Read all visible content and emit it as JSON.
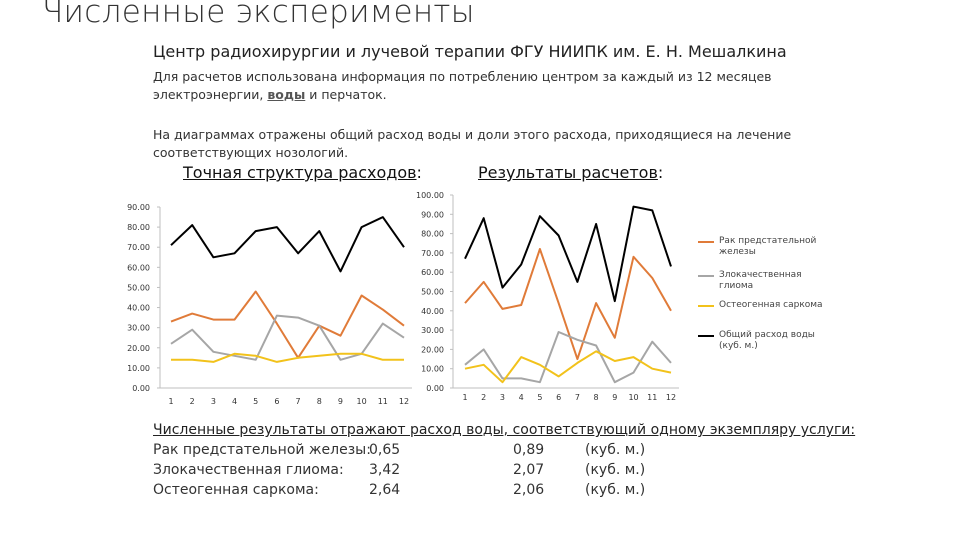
{
  "header": {
    "title": "Численные эксперименты",
    "subtitle": "Центр радиохирургии и лучевой терапии ФГУ НИИПК им. Е. Н. Мешалкина"
  },
  "paragraphs": {
    "p1_before": "Для расчетов использована информация по потреблению центром за каждый из 12 месяцев электроэнергии, ",
    "p1_highlight": "воды",
    "p1_after": " и перчаток.",
    "p2": "На диаграммах отражены общий расход воды и доли этого расхода, приходящиеся на лечение соответствующих нозологий."
  },
  "headings": {
    "left_main": "Точная структура расходов",
    "left_colon": ":",
    "right_main": "Результаты расчетов",
    "right_colon": ":"
  },
  "colors": {
    "prostate": "#e07b39",
    "glioma": "#a6a6a6",
    "sarcoma": "#f2c21b",
    "total": "#000000"
  },
  "chart_data": [
    {
      "type": "line",
      "title": "Точная структура расходов",
      "x": [
        1,
        2,
        3,
        4,
        5,
        6,
        7,
        8,
        9,
        10,
        11,
        12
      ],
      "ylim": [
        0,
        90
      ],
      "yticks": [
        "0.00",
        "10.00",
        "20.00",
        "30.00",
        "40.00",
        "50.00",
        "60.00",
        "70.00",
        "80.00",
        "90.00"
      ],
      "grid": false,
      "series": [
        {
          "name": "Рак предстательной железы",
          "color": "#e07b39",
          "values": [
            33,
            37,
            34,
            34,
            48,
            32,
            15,
            31,
            26,
            46,
            39,
            31
          ]
        },
        {
          "name": "Злокачественная глиома",
          "color": "#a6a6a6",
          "values": [
            22,
            29,
            18,
            16,
            14,
            36,
            35,
            31,
            14,
            17,
            32,
            25
          ]
        },
        {
          "name": "Остеогенная саркома",
          "color": "#f2c21b",
          "values": [
            14,
            14,
            13,
            17,
            16,
            13,
            15,
            16,
            17,
            17,
            14,
            14
          ]
        },
        {
          "name": "Общий расход воды (куб. м.)",
          "color": "#000000",
          "values": [
            71,
            81,
            65,
            67,
            78,
            80,
            67,
            78,
            58,
            80,
            85,
            70
          ]
        }
      ]
    },
    {
      "type": "line",
      "title": "Результаты расчетов",
      "x": [
        1,
        2,
        3,
        4,
        5,
        6,
        7,
        8,
        9,
        10,
        11,
        12
      ],
      "ylim": [
        0,
        100
      ],
      "yticks": [
        "0.00",
        "10.00",
        "20.00",
        "30.00",
        "40.00",
        "50.00",
        "60.00",
        "70.00",
        "80.00",
        "90.00",
        "100.00"
      ],
      "grid": false,
      "legend": "right",
      "series": [
        {
          "name": "Рак предстательной железы",
          "color": "#e07b39",
          "values": [
            44,
            55,
            41,
            43,
            72,
            44,
            15,
            44,
            26,
            68,
            57,
            40
          ]
        },
        {
          "name": "Злокачественная глиома",
          "color": "#a6a6a6",
          "values": [
            12,
            20,
            5,
            5,
            3,
            29,
            25,
            22,
            3,
            8,
            24,
            13
          ]
        },
        {
          "name": "Остеогенная саркома",
          "color": "#f2c21b",
          "values": [
            10,
            12,
            3,
            16,
            12,
            6,
            13,
            19,
            14,
            16,
            10,
            8
          ]
        },
        {
          "name": "Общий расход воды (куб. м.)",
          "color": "#000000",
          "values": [
            67,
            88,
            52,
            64,
            89,
            79,
            55,
            85,
            45,
            94,
            92,
            63
          ]
        }
      ]
    }
  ],
  "legend": [
    {
      "label": "Рак предстательной железы",
      "color": "#e07b39"
    },
    {
      "label": "Злокачественная глиома",
      "color": "#a6a6a6"
    },
    {
      "label": "Остеогенная саркома",
      "color": "#f2c21b"
    },
    {
      "label": "Общий расход воды (куб. м.)",
      "color": "#000000"
    }
  ],
  "results": {
    "heading": "Численные результаты отражают расход воды, соответствующий одному экземпляру услуги:",
    "rows": [
      {
        "label": "Рак предстательной железы:",
        "v1": "0,65",
        "v2": "0,89",
        "unit": "(куб. м.)"
      },
      {
        "label": "Злокачественная глиома:",
        "v1": "3,42",
        "v2": "2,07",
        "unit": "(куб. м.)"
      },
      {
        "label": "Остеогенная саркома:",
        "v1": "2,64",
        "v2": "2,06",
        "unit": "(куб. м.)"
      }
    ]
  }
}
